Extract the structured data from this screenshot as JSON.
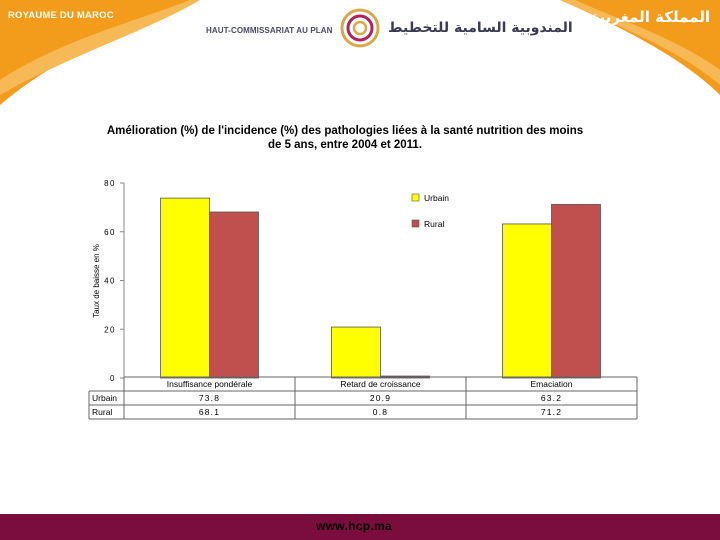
{
  "header": {
    "kingdom_fr": "ROYAUME DU MAROC",
    "kingdom_ar": "المملكة المغربية",
    "org_fr": "HAUT-COMMISSARIAT AU PLAN",
    "org_ar": "المندوبية السامية للتخطيط"
  },
  "footer": {
    "url": "www.hcp.ma"
  },
  "colors": {
    "banner": "#f39c1b",
    "footer": "#7a0d3e",
    "urbain": "#ffff00",
    "rural": "#c0504d"
  },
  "chart_data": {
    "type": "bar",
    "title": "Amélioration (%) de l'incidence (%) des pathologies liées à la santé nutrition des moins de 5 ans, entre 2004 et 2011.",
    "ylabel": "Taux de baisse en %",
    "xlabel": "",
    "ylim": [
      0,
      80
    ],
    "yticks": [
      "0",
      "20",
      "40",
      "60",
      "80"
    ],
    "categories": [
      "Insuffisance pondérale",
      "Retard de croissance",
      "Emaciation"
    ],
    "series": [
      {
        "name": "Urbain",
        "values": [
          73.8,
          20.9,
          63.2
        ],
        "labels": [
          "73.8",
          "20.9",
          "63.2"
        ],
        "color": "#ffff00"
      },
      {
        "name": "Rural",
        "values": [
          68.1,
          0.8,
          71.2
        ],
        "labels": [
          "68.1",
          "0.8",
          "71.2"
        ],
        "color": "#c0504d"
      }
    ],
    "legend": "top-right",
    "grid": false
  }
}
